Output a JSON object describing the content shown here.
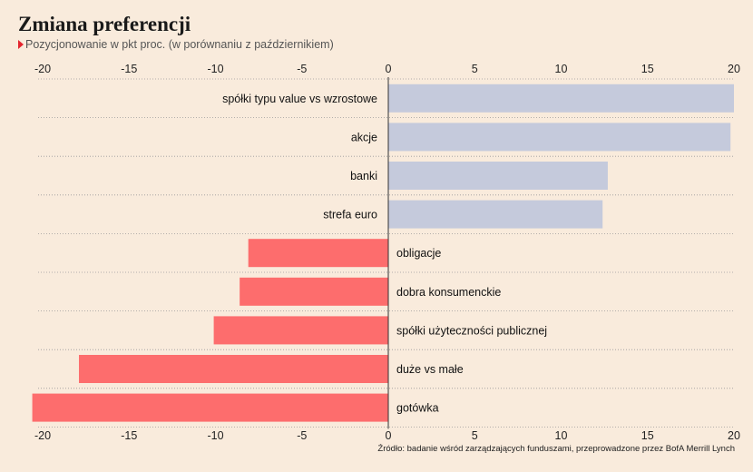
{
  "title": "Zmiana preferencji",
  "subtitle": "Pozycjonowanie w pkt proc. (w porównaniu z październikiem)",
  "source": "Źródło: badanie wśród zarządzających funduszami, przeprowadzone przez BofA Merrill Lynch",
  "colors": {
    "positive": "#c5cadc",
    "negative": "#fd6d6d",
    "grid": "#9a9a9a",
    "background": "#f9ebdc"
  },
  "chart_data": {
    "type": "bar",
    "orientation": "horizontal",
    "categories": [
      "spółki typu value vs wzrostowe",
      "akcje",
      "banki",
      "strefa euro",
      "obligacje",
      "dobra konsumenckie",
      "spółki użyteczności publicznej",
      "duże vs małe",
      "gotówka"
    ],
    "values": [
      20,
      19.8,
      12.7,
      12.4,
      -8.1,
      -8.6,
      -10.1,
      -17.9,
      -20.6
    ],
    "xlim": [
      -20,
      20
    ],
    "xticks": [
      -20,
      -15,
      -10,
      -5,
      0,
      5,
      10,
      15,
      20
    ],
    "xtick_labels": [
      "-20",
      "-15",
      "-10",
      "-5",
      "0",
      "5",
      "10",
      "15",
      "20"
    ],
    "xlabel": "",
    "ylabel": "",
    "grid": true,
    "legend": "none"
  }
}
